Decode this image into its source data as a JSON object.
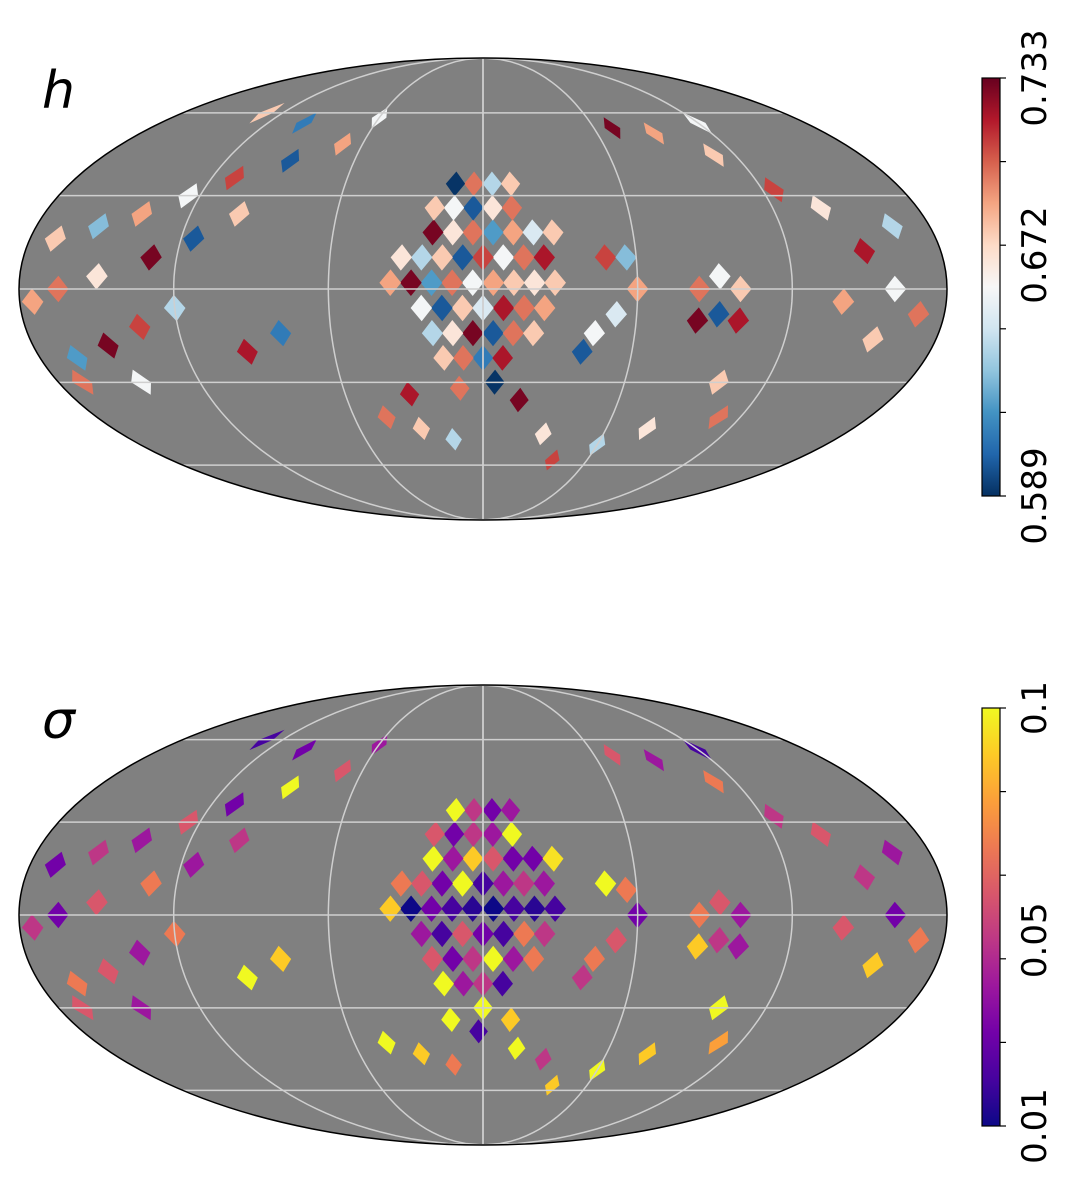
{
  "chart_data": [
    {
      "type": "heatmap",
      "projection": "mollweide",
      "title": "h",
      "background_color": "#808080",
      "colormap": "RdBu_r",
      "colormap_stops": [
        "#053061",
        "#2166ac",
        "#4393c3",
        "#92c5de",
        "#d1e5f0",
        "#f7f7f7",
        "#fddbc7",
        "#f4a582",
        "#d6604d",
        "#b2182b",
        "#67001f"
      ],
      "color_range": [
        0.589,
        0.733
      ],
      "colorbar_ticks": [
        "0.589",
        "0.672",
        "0.733"
      ],
      "graticule": {
        "parallels_deg": [
          -60,
          -30,
          0,
          30,
          60
        ],
        "meridians_deg": [
          -120,
          -60,
          0,
          60,
          120
        ]
      },
      "pixels": [
        [
          -12,
          18,
          0.69
        ],
        [
          -4,
          18,
          0.62
        ],
        [
          4,
          18,
          0.7
        ],
        [
          12,
          18,
          0.67
        ],
        [
          20,
          18,
          0.73
        ],
        [
          -20,
          18,
          0.65
        ],
        [
          -28,
          18,
          0.68
        ],
        [
          -8,
          10,
          0.66
        ],
        [
          0,
          10,
          0.71
        ],
        [
          8,
          10,
          0.6
        ],
        [
          16,
          10,
          0.68
        ],
        [
          -16,
          10,
          0.7
        ],
        [
          24,
          10,
          0.64
        ],
        [
          -24,
          10,
          0.72
        ],
        [
          32,
          10,
          0.67
        ],
        [
          -12,
          2,
          0.68
        ],
        [
          -4,
          2,
          0.69
        ],
        [
          4,
          2,
          0.66
        ],
        [
          12,
          2,
          0.7
        ],
        [
          20,
          2,
          0.62
        ],
        [
          -20,
          2,
          0.67
        ],
        [
          28,
          2,
          0.73
        ],
        [
          -28,
          2,
          0.68
        ],
        [
          36,
          2,
          0.69
        ],
        [
          -8,
          -6,
          0.72
        ],
        [
          0,
          -6,
          0.65
        ],
        [
          8,
          -6,
          0.68
        ],
        [
          16,
          -6,
          0.6
        ],
        [
          -16,
          -6,
          0.7
        ],
        [
          24,
          -6,
          0.66
        ],
        [
          -24,
          -6,
          0.69
        ],
        [
          -4,
          -14,
          0.6
        ],
        [
          4,
          -14,
          0.73
        ],
        [
          12,
          -14,
          0.67
        ],
        [
          -12,
          -14,
          0.7
        ],
        [
          20,
          -14,
          0.64
        ],
        [
          -20,
          -14,
          0.68
        ],
        [
          0,
          -22,
          0.61
        ],
        [
          8,
          -22,
          0.7
        ],
        [
          -8,
          -22,
          0.72
        ],
        [
          16,
          -22,
          0.68
        ],
        [
          -5,
          -30,
          0.59
        ],
        [
          10,
          -32,
          0.7
        ],
        [
          -16,
          -36,
          0.73
        ],
        [
          32,
          -34,
          0.72
        ],
        [
          -4,
          26,
          0.67
        ],
        [
          4,
          26,
          0.6
        ],
        [
          -12,
          26,
          0.7
        ],
        [
          12,
          26,
          0.66
        ],
        [
          20,
          26,
          0.68
        ],
        [
          -4,
          34,
          0.64
        ],
        [
          -12,
          34,
          0.68
        ],
        [
          4,
          34,
          0.7
        ],
        [
          12,
          34,
          0.59
        ],
        [
          -48,
          10,
          0.71
        ],
        [
          -56,
          10,
          0.63
        ],
        [
          -60,
          0,
          0.69
        ],
        [
          -52,
          -8,
          0.65
        ],
        [
          -44,
          -14,
          0.66
        ],
        [
          -40,
          -20,
          0.6
        ],
        [
          -100,
          0,
          0.68
        ],
        [
          -92,
          4,
          0.66
        ],
        [
          -84,
          0,
          0.7
        ],
        [
          -92,
          -8,
          0.6
        ],
        [
          -84,
          -10,
          0.73
        ],
        [
          -100,
          -10,
          0.72
        ],
        [
          -150,
          12,
          0.72
        ],
        [
          -160,
          0,
          0.66
        ],
        [
          -140,
          -4,
          0.69
        ],
        [
          -155,
          -16,
          0.68
        ],
        [
          -170,
          -8,
          0.7
        ],
        [
          -165,
          20,
          0.64
        ],
        [
          -140,
          26,
          0.67
        ],
        [
          -125,
          32,
          0.71
        ],
        [
          -110,
          44,
          0.68
        ],
        [
          -90,
          52,
          0.69
        ],
        [
          -70,
          54,
          0.73
        ],
        [
          -120,
          56,
          0.66
        ],
        [
          -100,
          -30,
          0.68
        ],
        [
          -110,
          -42,
          0.7
        ],
        [
          -80,
          -46,
          0.67
        ],
        [
          -60,
          -52,
          0.64
        ],
        [
          90,
          42,
          0.6
        ],
        [
          110,
          36,
          0.71
        ],
        [
          125,
          30,
          0.66
        ],
        [
          140,
          24,
          0.69
        ],
        [
          155,
          20,
          0.63
        ],
        [
          170,
          16,
          0.68
        ],
        [
          100,
          24,
          0.68
        ],
        [
          115,
          16,
          0.6
        ],
        [
          130,
          10,
          0.73
        ],
        [
          150,
          4,
          0.67
        ],
        [
          165,
          0,
          0.7
        ],
        [
          175,
          -4,
          0.69
        ],
        [
          120,
          -6,
          0.64
        ],
        [
          135,
          -12,
          0.71
        ],
        [
          150,
          -18,
          0.73
        ],
        [
          165,
          -22,
          0.62
        ],
        [
          145,
          -30,
          0.66
        ],
        [
          170,
          -30,
          0.7
        ],
        [
          80,
          -14,
          0.61
        ],
        [
          95,
          -20,
          0.72
        ],
        [
          70,
          48,
          0.69
        ],
        [
          100,
          56,
          0.61
        ],
        [
          130,
          60,
          0.68
        ],
        [
          60,
          58,
          0.66
        ],
        [
          30,
          -46,
          0.68
        ],
        [
          15,
          -50,
          0.64
        ],
        [
          45,
          -42,
          0.7
        ],
        [
          -30,
          -48,
          0.67
        ],
        [
          -40,
          -58,
          0.71
        ]
      ]
    },
    {
      "type": "heatmap",
      "projection": "mollweide",
      "title": "σ",
      "background_color": "#808080",
      "colormap": "plasma",
      "colormap_stops": [
        "#0d0887",
        "#46039f",
        "#7201a8",
        "#9c179e",
        "#bd3786",
        "#d8576b",
        "#ed7953",
        "#fb9f3a",
        "#fdca26",
        "#f0f921"
      ],
      "color_range": [
        0.01,
        0.1
      ],
      "colorbar_ticks": [
        "0.01",
        "0.05",
        "0.1"
      ],
      "graticule": {
        "parallels_deg": [
          -60,
          -30,
          0,
          30,
          60
        ],
        "meridians_deg": [
          -120,
          -60,
          0,
          60,
          120
        ]
      },
      "pixels": [
        [
          -12,
          18,
          0.03
        ],
        [
          -4,
          18,
          0.06
        ],
        [
          4,
          18,
          0.09
        ],
        [
          12,
          18,
          0.04
        ],
        [
          20,
          18,
          0.1
        ],
        [
          -20,
          18,
          0.03
        ],
        [
          -28,
          18,
          0.095
        ],
        [
          -8,
          10,
          0.04
        ],
        [
          0,
          10,
          0.02
        ],
        [
          8,
          10,
          0.1
        ],
        [
          16,
          10,
          0.03
        ],
        [
          -16,
          10,
          0.05
        ],
        [
          24,
          10,
          0.06
        ],
        [
          -24,
          10,
          0.04
        ],
        [
          32,
          10,
          0.07
        ],
        [
          -12,
          2,
          0.02
        ],
        [
          -4,
          2,
          0.01
        ],
        [
          4,
          2,
          0.015
        ],
        [
          12,
          2,
          0.02
        ],
        [
          20,
          2,
          0.03
        ],
        [
          -20,
          2,
          0.015
        ],
        [
          28,
          2,
          0.01
        ],
        [
          -28,
          2,
          0.02
        ],
        [
          36,
          2,
          0.09
        ],
        [
          -8,
          -6,
          0.02
        ],
        [
          0,
          -6,
          0.03
        ],
        [
          8,
          -6,
          0.06
        ],
        [
          16,
          -6,
          0.02
        ],
        [
          -16,
          -6,
          0.07
        ],
        [
          24,
          -6,
          0.04
        ],
        [
          -24,
          -6,
          0.05
        ],
        [
          -4,
          -14,
          0.1
        ],
        [
          4,
          -14,
          0.05
        ],
        [
          12,
          -14,
          0.03
        ],
        [
          -12,
          -14,
          0.04
        ],
        [
          20,
          -14,
          0.06
        ],
        [
          -20,
          -14,
          0.07
        ],
        [
          0,
          -22,
          0.05
        ],
        [
          8,
          -22,
          0.04
        ],
        [
          -8,
          -22,
          0.02
        ],
        [
          16,
          -22,
          0.1
        ],
        [
          0,
          -30,
          0.1
        ],
        [
          -12,
          -34,
          0.09
        ],
        [
          14,
          -34,
          0.1
        ],
        [
          2,
          -38,
          0.02
        ],
        [
          -16,
          -44,
          0.1
        ],
        [
          -4,
          26,
          0.04
        ],
        [
          4,
          26,
          0.05
        ],
        [
          -12,
          26,
          0.1
        ],
        [
          12,
          26,
          0.03
        ],
        [
          20,
          26,
          0.06
        ],
        [
          -4,
          34,
          0.03
        ],
        [
          -12,
          34,
          0.04
        ],
        [
          4,
          34,
          0.05
        ],
        [
          12,
          34,
          0.1
        ],
        [
          -48,
          10,
          0.1
        ],
        [
          -56,
          8,
          0.07
        ],
        [
          -60,
          0,
          0.03
        ],
        [
          -52,
          -8,
          0.06
        ],
        [
          -44,
          -14,
          0.07
        ],
        [
          -40,
          -20,
          0.05
        ],
        [
          -100,
          0,
          0.04
        ],
        [
          -92,
          4,
          0.06
        ],
        [
          -84,
          0,
          0.07
        ],
        [
          -92,
          -8,
          0.05
        ],
        [
          -84,
          -10,
          0.09
        ],
        [
          -100,
          -10,
          0.04
        ],
        [
          -150,
          12,
          0.05
        ],
        [
          -160,
          0,
          0.03
        ],
        [
          -140,
          -4,
          0.06
        ],
        [
          -155,
          -16,
          0.09
        ],
        [
          -170,
          -8,
          0.07
        ],
        [
          -165,
          20,
          0.04
        ],
        [
          -140,
          26,
          0.06
        ],
        [
          -125,
          32,
          0.05
        ],
        [
          -110,
          44,
          0.07
        ],
        [
          -90,
          52,
          0.04
        ],
        [
          -70,
          54,
          0.06
        ],
        [
          -120,
          56,
          0.02
        ],
        [
          -100,
          -30,
          0.1
        ],
        [
          -110,
          -42,
          0.08
        ],
        [
          -80,
          -46,
          0.09
        ],
        [
          -60,
          -52,
          0.1
        ],
        [
          90,
          42,
          0.1
        ],
        [
          110,
          36,
          0.03
        ],
        [
          125,
          30,
          0.06
        ],
        [
          140,
          24,
          0.04
        ],
        [
          155,
          20,
          0.05
        ],
        [
          170,
          16,
          0.03
        ],
        [
          100,
          24,
          0.05
        ],
        [
          115,
          16,
          0.04
        ],
        [
          130,
          10,
          0.07
        ],
        [
          150,
          4,
          0.06
        ],
        [
          165,
          0,
          0.03
        ],
        [
          175,
          -4,
          0.05
        ],
        [
          120,
          -6,
          0.07
        ],
        [
          135,
          -12,
          0.04
        ],
        [
          150,
          -18,
          0.06
        ],
        [
          165,
          -22,
          0.07
        ],
        [
          145,
          -30,
          0.04
        ],
        [
          170,
          -30,
          0.06
        ],
        [
          80,
          -14,
          0.09
        ],
        [
          95,
          -20,
          0.1
        ],
        [
          70,
          48,
          0.06
        ],
        [
          100,
          56,
          0.03
        ],
        [
          130,
          60,
          0.02
        ],
        [
          60,
          58,
          0.04
        ],
        [
          30,
          -46,
          0.09
        ],
        [
          15,
          -50,
          0.07
        ],
        [
          45,
          -42,
          0.1
        ],
        [
          -30,
          -48,
          0.05
        ],
        [
          -40,
          -58,
          0.09
        ]
      ]
    }
  ]
}
